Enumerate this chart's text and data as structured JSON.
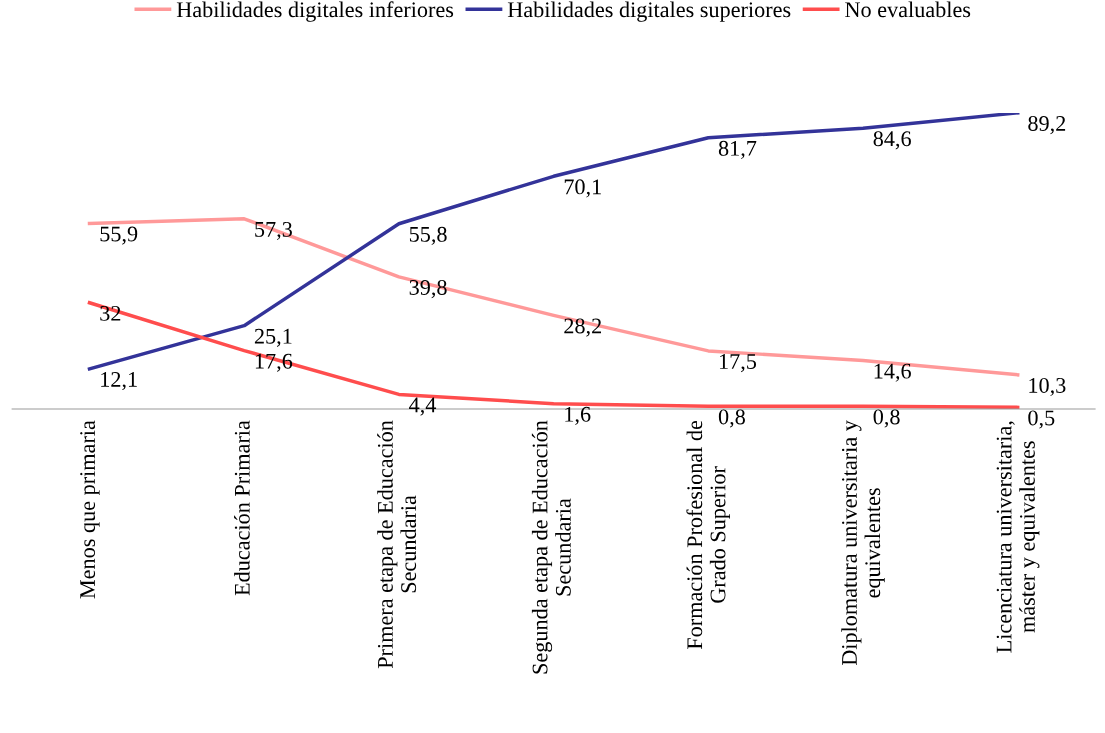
{
  "chart_data": {
    "type": "line",
    "categories": [
      "Menos que primaria",
      "Educación Primaria",
      "Primera etapa de Educación\nSecundaria",
      "Segunda etapa de Educación\nSecundaria",
      "Formación Profesional de\nGrado Superior",
      "Diplomatura universitaria y\nequivalentes",
      "Licenciatura universitaria,\nmáster y equivalentes"
    ],
    "series": [
      {
        "name": "Habilidades digitales inferiores",
        "color": "#ff9999",
        "values": [
          55.9,
          57.3,
          39.8,
          28.2,
          17.5,
          14.6,
          10.3
        ],
        "value_labels": [
          "55,9",
          "57,3",
          "39,8",
          "28,2",
          "17,5",
          "14,6",
          "10,3"
        ]
      },
      {
        "name": "Habilidades digitales superiores",
        "color": "#333399",
        "values": [
          12.1,
          25.1,
          55.8,
          70.1,
          81.7,
          84.6,
          89.2
        ],
        "value_labels": [
          "12,1",
          "25,1",
          "55,8",
          "70,1",
          "81,7",
          "84,6",
          "89,2"
        ]
      },
      {
        "name": "No evaluables",
        "color": "#ff4d4d",
        "values": [
          32,
          17.6,
          4.4,
          1.6,
          0.8,
          0.8,
          0.5
        ],
        "value_labels": [
          "32",
          "17,6",
          "4,4",
          "1,6",
          "0,8",
          "0,8",
          "0,5"
        ]
      }
    ],
    "legend": "top",
    "grid": false,
    "marker": "none",
    "line_style": "solid"
  }
}
